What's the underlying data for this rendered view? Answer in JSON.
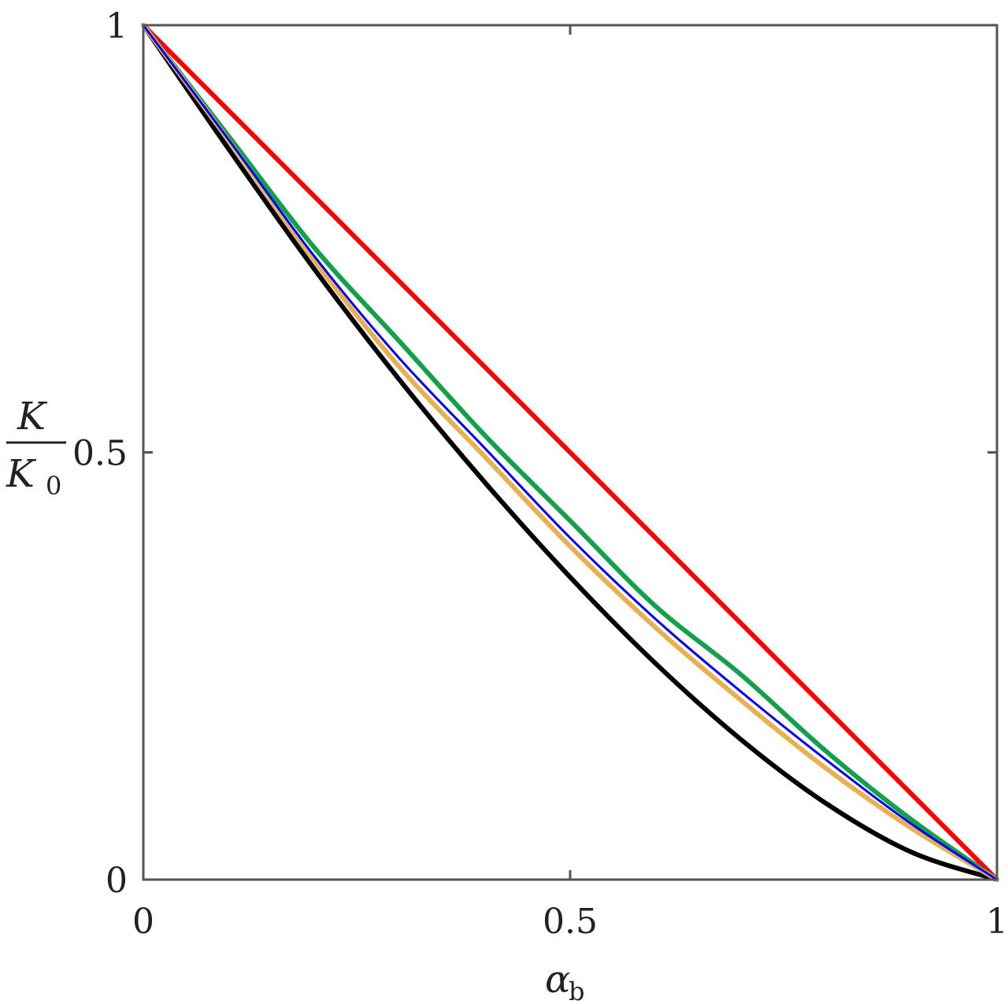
{
  "chart_data": {
    "type": "line",
    "title": "",
    "xlabel": "α_b",
    "ylabel": "K / K_0",
    "xlim": [
      0,
      1
    ],
    "ylim": [
      0,
      1
    ],
    "grid": false,
    "legend": null,
    "x_ticks": [
      "0",
      "0.5",
      "1"
    ],
    "y_ticks": [
      "0",
      "0.5",
      "1"
    ],
    "x": [
      0,
      0.1,
      0.2,
      0.3,
      0.4,
      0.5,
      0.6,
      0.7,
      0.8,
      0.9,
      1.0
    ],
    "series": [
      {
        "name": "red",
        "color": "#ff0000",
        "width": 6,
        "values": [
          1,
          0.9,
          0.8,
          0.7,
          0.6,
          0.5,
          0.4,
          0.3,
          0.2,
          0.1,
          0
        ]
      },
      {
        "name": "green",
        "color": "#12a04a",
        "width": 6,
        "values": [
          1,
          0.87,
          0.74,
          0.63,
          0.52,
          0.42,
          0.32,
          0.24,
          0.15,
          0.07,
          0
        ]
      },
      {
        "name": "blue",
        "color": "#0000ff",
        "width": 3,
        "values": [
          1,
          0.866,
          0.73,
          0.61,
          0.505,
          0.4,
          0.305,
          0.22,
          0.14,
          0.065,
          0
        ]
      },
      {
        "name": "orange",
        "color": "#e8b050",
        "width": 6,
        "values": [
          1,
          0.865,
          0.725,
          0.6,
          0.495,
          0.39,
          0.295,
          0.21,
          0.13,
          0.06,
          0
        ]
      },
      {
        "name": "black",
        "color": "#000000",
        "width": 6,
        "values": [
          1,
          0.855,
          0.715,
          0.585,
          0.465,
          0.354,
          0.253,
          0.164,
          0.089,
          0.032,
          0
        ]
      }
    ]
  },
  "axes": {
    "x_label_main": "α",
    "x_label_sub": "b",
    "y_label_num": "K",
    "y_label_den": "K",
    "y_label_den_sub": "0"
  }
}
